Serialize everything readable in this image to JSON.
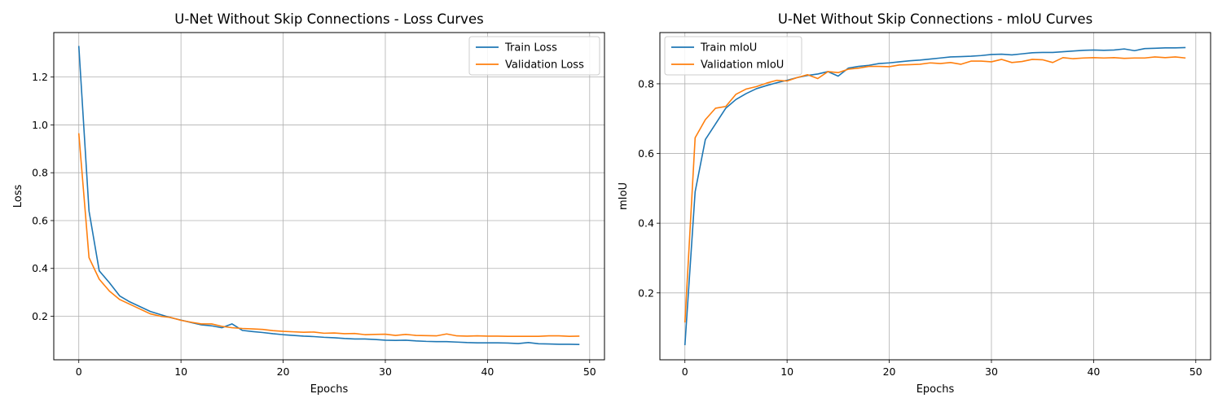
{
  "chart_data": [
    {
      "type": "line",
      "title": "U-Net Without Skip Connections - Loss Curves",
      "xlabel": "Epochs",
      "ylabel": "Loss",
      "xlim": [
        -2.45,
        51.45
      ],
      "ylim": [
        0.018,
        1.386
      ],
      "xticks": [
        0,
        10,
        20,
        30,
        40,
        50
      ],
      "yticks": [
        0.2,
        0.4,
        0.6,
        0.8,
        1.0,
        1.2
      ],
      "ytick_format": 1,
      "grid": true,
      "legend_position": "top-right",
      "x": [
        0,
        1,
        2,
        3,
        4,
        5,
        6,
        7,
        8,
        9,
        10,
        11,
        12,
        13,
        14,
        15,
        16,
        17,
        18,
        19,
        20,
        21,
        22,
        23,
        24,
        25,
        26,
        27,
        28,
        29,
        30,
        31,
        32,
        33,
        34,
        35,
        36,
        37,
        38,
        39,
        40,
        41,
        42,
        43,
        44,
        45,
        46,
        47,
        48,
        49
      ],
      "series": [
        {
          "name": "Train Loss",
          "color": "#1f77b4",
          "values": [
            1.33,
            0.64,
            0.39,
            0.34,
            0.285,
            0.26,
            0.24,
            0.22,
            0.207,
            0.194,
            0.184,
            0.174,
            0.164,
            0.16,
            0.152,
            0.168,
            0.141,
            0.136,
            0.132,
            0.127,
            0.123,
            0.12,
            0.117,
            0.115,
            0.112,
            0.11,
            0.107,
            0.105,
            0.105,
            0.103,
            0.1,
            0.099,
            0.1,
            0.097,
            0.095,
            0.094,
            0.094,
            0.092,
            0.09,
            0.089,
            0.089,
            0.089,
            0.088,
            0.086,
            0.09,
            0.085,
            0.084,
            0.083,
            0.083,
            0.082
          ]
        },
        {
          "name": "Validation Loss",
          "color": "#ff7f0e",
          "values": [
            0.965,
            0.445,
            0.355,
            0.305,
            0.27,
            0.25,
            0.23,
            0.21,
            0.2,
            0.195,
            0.183,
            0.175,
            0.168,
            0.168,
            0.158,
            0.152,
            0.149,
            0.147,
            0.145,
            0.14,
            0.137,
            0.135,
            0.133,
            0.134,
            0.129,
            0.13,
            0.127,
            0.128,
            0.123,
            0.124,
            0.125,
            0.12,
            0.124,
            0.12,
            0.119,
            0.118,
            0.126,
            0.118,
            0.117,
            0.118,
            0.117,
            0.117,
            0.116,
            0.116,
            0.116,
            0.116,
            0.118,
            0.118,
            0.116,
            0.117
          ]
        }
      ]
    },
    {
      "type": "line",
      "title": "U-Net Without Skip Connections - mIoU Curves",
      "xlabel": "Epochs",
      "ylabel": "mIoU",
      "xlim": [
        -2.45,
        51.45
      ],
      "ylim": [
        0.008,
        0.947
      ],
      "xticks": [
        0,
        10,
        20,
        30,
        40,
        50
      ],
      "yticks": [
        0.2,
        0.4,
        0.6,
        0.8
      ],
      "ytick_format": 1,
      "grid": true,
      "legend_position": "top-left",
      "x": [
        0,
        1,
        2,
        3,
        4,
        5,
        6,
        7,
        8,
        9,
        10,
        11,
        12,
        13,
        14,
        15,
        16,
        17,
        18,
        19,
        20,
        21,
        22,
        23,
        24,
        25,
        26,
        27,
        28,
        29,
        30,
        31,
        32,
        33,
        34,
        35,
        36,
        37,
        38,
        39,
        40,
        41,
        42,
        43,
        44,
        45,
        46,
        47,
        48,
        49
      ],
      "series": [
        {
          "name": "Train mIoU",
          "color": "#1f77b4",
          "values": [
            0.05,
            0.49,
            0.64,
            0.685,
            0.73,
            0.755,
            0.772,
            0.786,
            0.795,
            0.803,
            0.81,
            0.818,
            0.824,
            0.828,
            0.835,
            0.822,
            0.845,
            0.85,
            0.853,
            0.858,
            0.86,
            0.863,
            0.866,
            0.868,
            0.871,
            0.874,
            0.877,
            0.878,
            0.879,
            0.881,
            0.884,
            0.885,
            0.883,
            0.886,
            0.889,
            0.89,
            0.89,
            0.892,
            0.894,
            0.896,
            0.897,
            0.896,
            0.897,
            0.9,
            0.895,
            0.901,
            0.902,
            0.903,
            0.903,
            0.904
          ]
        },
        {
          "name": "Validation mIoU",
          "color": "#ff7f0e",
          "values": [
            0.115,
            0.645,
            0.697,
            0.73,
            0.735,
            0.77,
            0.785,
            0.792,
            0.802,
            0.81,
            0.808,
            0.818,
            0.826,
            0.815,
            0.835,
            0.832,
            0.842,
            0.845,
            0.85,
            0.85,
            0.849,
            0.854,
            0.855,
            0.856,
            0.86,
            0.858,
            0.861,
            0.856,
            0.865,
            0.865,
            0.863,
            0.87,
            0.861,
            0.864,
            0.87,
            0.869,
            0.861,
            0.875,
            0.872,
            0.874,
            0.875,
            0.874,
            0.875,
            0.873,
            0.874,
            0.874,
            0.877,
            0.875,
            0.877,
            0.874
          ]
        }
      ]
    }
  ]
}
